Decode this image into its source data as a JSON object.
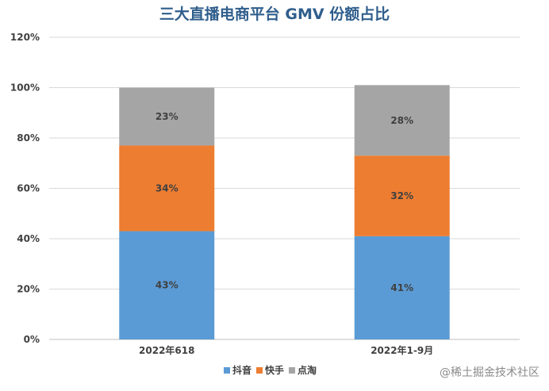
{
  "chart_data": {
    "type": "bar",
    "stacked": true,
    "title": "三大直播电商平台 GMV 份额占比",
    "categories": [
      "2022年618",
      "2022年1-9月"
    ],
    "series": [
      {
        "name": "抖音",
        "values": [
          43,
          41
        ],
        "labels": [
          "43%",
          "41%"
        ],
        "color": "#5b9bd5"
      },
      {
        "name": "快手",
        "values": [
          34,
          32
        ],
        "labels": [
          "34%",
          "32%"
        ],
        "color": "#ed7d31"
      },
      {
        "name": "点淘",
        "values": [
          23,
          28
        ],
        "labels": [
          "23%",
          "28%"
        ],
        "color": "#a5a5a5"
      }
    ],
    "ylim": [
      0,
      120
    ],
    "yticks": [
      "0%",
      "20%",
      "40%",
      "60%",
      "80%",
      "100%",
      "120%"
    ],
    "grid": true,
    "legend": "bottom"
  },
  "watermark": "@稀土掘金技术社区"
}
